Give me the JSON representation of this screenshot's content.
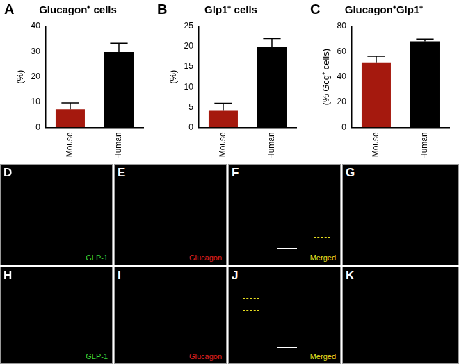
{
  "chart_data": [
    {
      "panel": "A",
      "type": "bar",
      "title": "Glucagon⁺ cells",
      "y_label": "(%)",
      "categories": [
        "Mouse",
        "Human"
      ],
      "values": [
        7.2,
        29.8
      ],
      "errors": [
        2.5,
        3.5
      ],
      "colors": [
        "#a5190e",
        "#000000"
      ],
      "ylim": [
        0,
        40
      ],
      "yticks": [
        0,
        10,
        20,
        30,
        40
      ],
      "grid": false
    },
    {
      "panel": "B",
      "type": "bar",
      "title": "Glp1⁺ cells",
      "y_label": "(%)",
      "categories": [
        "Mouse",
        "Human"
      ],
      "values": [
        4.1,
        19.9
      ],
      "errors": [
        1.9,
        2.1
      ],
      "colors": [
        "#a5190e",
        "#000000"
      ],
      "ylim": [
        0,
        25
      ],
      "yticks": [
        0,
        5,
        10,
        15,
        20,
        25
      ],
      "grid": false
    },
    {
      "panel": "C",
      "type": "bar",
      "title": "Glucagon⁺Glp1⁺",
      "y_label": "(% Gcg⁺ cells)",
      "categories": [
        "Mouse",
        "Human"
      ],
      "values": [
        51.5,
        68.2
      ],
      "errors": [
        4.8,
        1.8
      ],
      "colors": [
        "#a5190e",
        "#000000"
      ],
      "ylim": [
        0,
        80
      ],
      "yticks": [
        0,
        20,
        40,
        60,
        80
      ],
      "grid": false
    }
  ],
  "images": [
    {
      "panel": "D",
      "label": "GLP-1",
      "label_color": "#39d639"
    },
    {
      "panel": "E",
      "label": "Glucagon",
      "label_color": "#e02020"
    },
    {
      "panel": "F",
      "label": "Merged",
      "label_color": "#e8e020"
    },
    {
      "panel": "G"
    },
    {
      "panel": "H",
      "label": "GLP-1",
      "label_color": "#39d639"
    },
    {
      "panel": "I",
      "label": "Glucagon",
      "label_color": "#e02020"
    },
    {
      "panel": "J",
      "label": "Merged",
      "label_color": "#e8e020"
    },
    {
      "panel": "K"
    }
  ]
}
